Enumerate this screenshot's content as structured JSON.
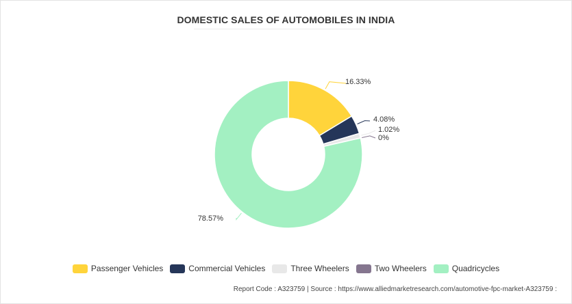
{
  "chart_data": {
    "type": "pie",
    "variant": "donut",
    "title": "DOMESTIC SALES OF AUTOMOBILES IN INDIA",
    "categories": [
      "Passenger Vehicles",
      "Commercial Vehicles",
      "Three Wheelers",
      "Two Wheelers",
      "Quadricycles"
    ],
    "values": [
      16.33,
      4.08,
      1.02,
      0,
      78.57
    ],
    "value_labels": [
      "16.33%",
      "4.08%",
      "1.02%",
      "0%",
      "78.57%"
    ],
    "colors": [
      "#ffd43b",
      "#253659",
      "#e8e8e8",
      "#85768f",
      "#a3f0c2"
    ],
    "legend_position": "bottom"
  },
  "footer": {
    "text": "Report Code : A323759  |  Source : https://www.alliedmarketresearch.com/automotive-fpc-market-A323759 :"
  }
}
